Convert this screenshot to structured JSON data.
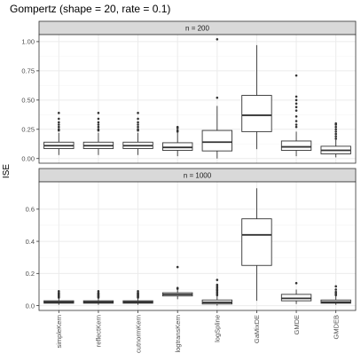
{
  "chart_data": {
    "type": "boxplot",
    "title": "Gompertz (shape = 20, rate = 0.1)",
    "ylabel": "ISE",
    "xlabel": "",
    "categories": [
      "simpleKern",
      "reflectKern",
      "cutnormKern",
      "logtransKern",
      "logSpline",
      "GaMixDE",
      "GMDE",
      "GMDEB"
    ],
    "grid": true,
    "facets": [
      {
        "strip": "n = 200",
        "ylim": [
          -0.04,
          1.06
        ],
        "yticks": [
          0.0,
          0.25,
          0.5,
          0.75,
          1.0
        ],
        "ytick_labels": [
          "0.00",
          "0.25",
          "0.50",
          "0.75",
          "1.00"
        ],
        "boxes": [
          {
            "min": 0.03,
            "q1": 0.085,
            "median": 0.11,
            "q3": 0.14,
            "max": 0.22,
            "outliers": [
              0.24,
              0.25,
              0.27,
              0.29,
              0.31,
              0.34,
              0.39
            ]
          },
          {
            "min": 0.03,
            "q1": 0.085,
            "median": 0.11,
            "q3": 0.14,
            "max": 0.22,
            "outliers": [
              0.24,
              0.25,
              0.27,
              0.29,
              0.31,
              0.34,
              0.39
            ]
          },
          {
            "min": 0.03,
            "q1": 0.085,
            "median": 0.11,
            "q3": 0.14,
            "max": 0.22,
            "outliers": [
              0.24,
              0.25,
              0.27,
              0.29,
              0.31,
              0.34,
              0.39
            ]
          },
          {
            "min": 0.02,
            "q1": 0.07,
            "median": 0.095,
            "q3": 0.135,
            "max": 0.22,
            "outliers": [
              0.23,
              0.24,
              0.26,
              0.27
            ]
          },
          {
            "min": 0.0,
            "q1": 0.065,
            "median": 0.14,
            "q3": 0.24,
            "max": 0.45,
            "outliers": [
              0.52,
              1.02
            ]
          },
          {
            "min": 0.08,
            "q1": 0.23,
            "median": 0.37,
            "q3": 0.54,
            "max": 0.97,
            "outliers": []
          },
          {
            "min": 0.02,
            "q1": 0.07,
            "median": 0.1,
            "q3": 0.15,
            "max": 0.23,
            "outliers": [
              0.27,
              0.29,
              0.32,
              0.36,
              0.41,
              0.44,
              0.47,
              0.5,
              0.53,
              0.71
            ]
          },
          {
            "min": 0.01,
            "q1": 0.04,
            "median": 0.07,
            "q3": 0.105,
            "max": 0.16,
            "outliers": [
              0.17,
              0.19,
              0.21,
              0.23,
              0.25,
              0.27,
              0.29,
              0.3
            ]
          }
        ]
      },
      {
        "strip": "n = 1000",
        "ylim": [
          -0.03,
          0.77
        ],
        "yticks": [
          0.0,
          0.2,
          0.4,
          0.6
        ],
        "ytick_labels": [
          "0.0",
          "0.2",
          "0.4",
          "0.6"
        ],
        "boxes": [
          {
            "min": 0.005,
            "q1": 0.015,
            "median": 0.022,
            "q3": 0.03,
            "max": 0.045,
            "outliers": [
              0.05,
              0.055,
              0.06,
              0.065,
              0.07,
              0.075,
              0.08,
              0.09
            ]
          },
          {
            "min": 0.005,
            "q1": 0.015,
            "median": 0.022,
            "q3": 0.03,
            "max": 0.045,
            "outliers": [
              0.05,
              0.055,
              0.06,
              0.065,
              0.07,
              0.075,
              0.08,
              0.09
            ]
          },
          {
            "min": 0.005,
            "q1": 0.015,
            "median": 0.022,
            "q3": 0.03,
            "max": 0.045,
            "outliers": [
              0.05,
              0.055,
              0.06,
              0.065,
              0.07,
              0.075,
              0.08,
              0.09
            ]
          },
          {
            "min": 0.04,
            "q1": 0.06,
            "median": 0.07,
            "q3": 0.08,
            "max": 0.1,
            "outliers": [
              0.105,
              0.11,
              0.24
            ]
          },
          {
            "min": 0.0,
            "q1": 0.01,
            "median": 0.02,
            "q3": 0.035,
            "max": 0.06,
            "outliers": [
              0.065,
              0.075,
              0.085,
              0.095,
              0.1,
              0.11,
              0.12,
              0.13,
              0.16
            ]
          },
          {
            "min": 0.03,
            "q1": 0.25,
            "median": 0.44,
            "q3": 0.54,
            "max": 0.73,
            "outliers": []
          },
          {
            "min": 0.01,
            "q1": 0.03,
            "median": 0.045,
            "q3": 0.07,
            "max": 0.1,
            "outliers": [
              0.14
            ]
          },
          {
            "min": 0.005,
            "q1": 0.015,
            "median": 0.022,
            "q3": 0.035,
            "max": 0.06,
            "outliers": [
              0.065,
              0.075,
              0.085,
              0.1,
              0.12
            ]
          }
        ]
      }
    ]
  },
  "colors": {
    "panel_background": "#ffffff",
    "panel_border": "#333333",
    "strip_background": "#d9d9d9",
    "grid_major": "#ebebeb",
    "grid_minor": "#f5f5f5",
    "box_line": "#333333",
    "outlier": "#333333"
  }
}
